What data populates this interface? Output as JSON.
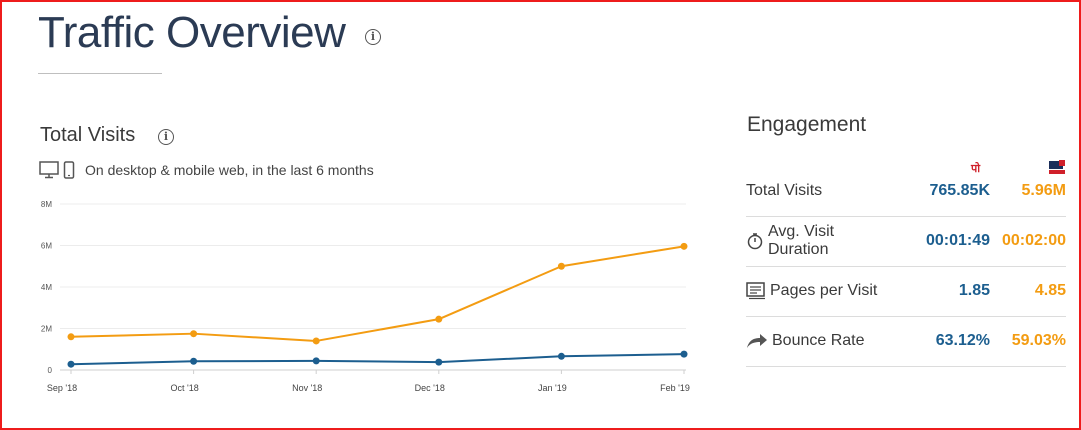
{
  "page": {
    "title": "Traffic Overview"
  },
  "total_visits": {
    "title": "Total Visits",
    "device_note": "On desktop & mobile web, in the last 6 months"
  },
  "chart_data": {
    "type": "line",
    "categories": [
      "Sep '18",
      "Oct '18",
      "Nov '18",
      "Dec '18",
      "Jan '19",
      "Feb '19"
    ],
    "y_ticks": [
      "0",
      "2M",
      "4M",
      "6M",
      "8M"
    ],
    "ylim": [
      0,
      8000000
    ],
    "grid": true,
    "series": [
      {
        "color": "#f39c12",
        "values": [
          1600000,
          1750000,
          1400000,
          2450000,
          5000000,
          5960000
        ]
      },
      {
        "color": "#1c5e8f",
        "values": [
          280000,
          420000,
          440000,
          380000,
          660000,
          765850
        ]
      }
    ]
  },
  "engagement": {
    "title": "Engagement",
    "site1_color": "#1c5e8f",
    "site2_color": "#f39c12",
    "rows": [
      {
        "label": "Total Visits",
        "icon": "none",
        "v1": "765.85K",
        "v2": "5.96M"
      },
      {
        "label": "Avg. Visit Duration",
        "icon": "stopwatch-icon",
        "v1": "00:01:49",
        "v2": "00:02:00"
      },
      {
        "label": "Pages per Visit",
        "icon": "pages-icon",
        "v1": "1.85",
        "v2": "4.85"
      },
      {
        "label": "Bounce Rate",
        "icon": "bounce-arrow-icon",
        "v1": "63.12%",
        "v2": "59.03%"
      }
    ]
  }
}
